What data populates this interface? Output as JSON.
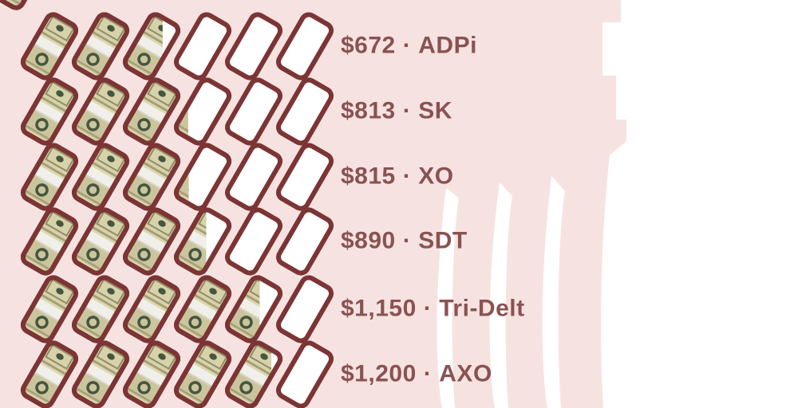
{
  "page": {
    "background_color": "#f6e3e1",
    "watermark_color": "#ffffff"
  },
  "chart_data": {
    "type": "pictograph",
    "icon": "money-stack",
    "max_icons_per_row": 6,
    "value_per_icon": 250,
    "separator": "·",
    "rows": [
      {
        "amount": "$672",
        "label": "ADPi",
        "value": 672,
        "icons_filled": 2.69
      },
      {
        "amount": "$813",
        "label": "SK",
        "value": 813,
        "icons_filled": 3.25
      },
      {
        "amount": "$815",
        "label": "XO",
        "value": 815,
        "icons_filled": 3.26
      },
      {
        "amount": "$890",
        "label": "SDT",
        "value": 890,
        "icons_filled": 3.56
      },
      {
        "amount": "$1,150",
        "label": "Tri-Delt",
        "value": 1150,
        "icons_filled": 4.6
      },
      {
        "amount": "$1,200",
        "label": "AXO",
        "value": 1200,
        "icons_filled": 4.8
      }
    ],
    "colors": {
      "text": "#8a5252",
      "outline": "#7c3434",
      "bill_base": "#cbc59d",
      "bill_light": "#d8d2aa",
      "bill_inner_border": "#8f8e66",
      "detail_dark": "#455740",
      "band": "#f0efe9",
      "band_shadow": "#d8d4c6",
      "stripe_dark": "#a59f78",
      "stripe_light": "#ddd7b0"
    }
  }
}
